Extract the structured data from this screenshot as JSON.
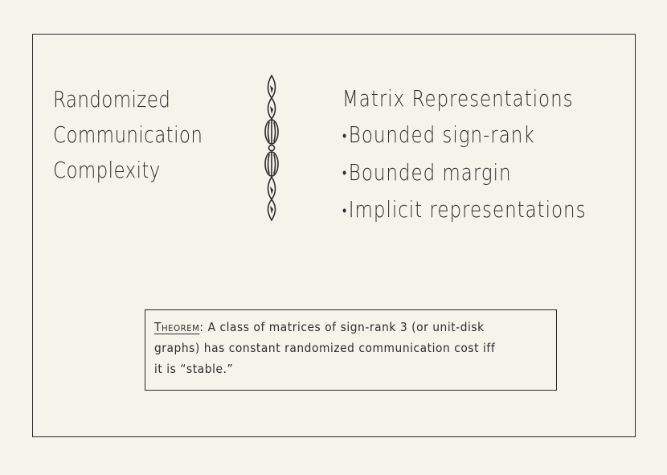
{
  "left_title": [
    "Randomized",
    "Communication",
    "Complexity"
  ],
  "right_title": "Matrix Representations",
  "bullets": [
    "Bounded  sign-rank",
    "Bounded  margin",
    "Implicit  representations"
  ],
  "theorem": {
    "label": "Theorem",
    "colon": ":",
    "lines": [
      " A class of matrices of sign-rank 3 (or unit-disk",
      "graphs) has constant randomized communication cost iff",
      "it is “stable.”"
    ]
  },
  "icons": {
    "divider": "twisted-rope-ornament-icon"
  },
  "colors": {
    "paper": "#f6f3ea",
    "ink": "#2b2b2b"
  }
}
